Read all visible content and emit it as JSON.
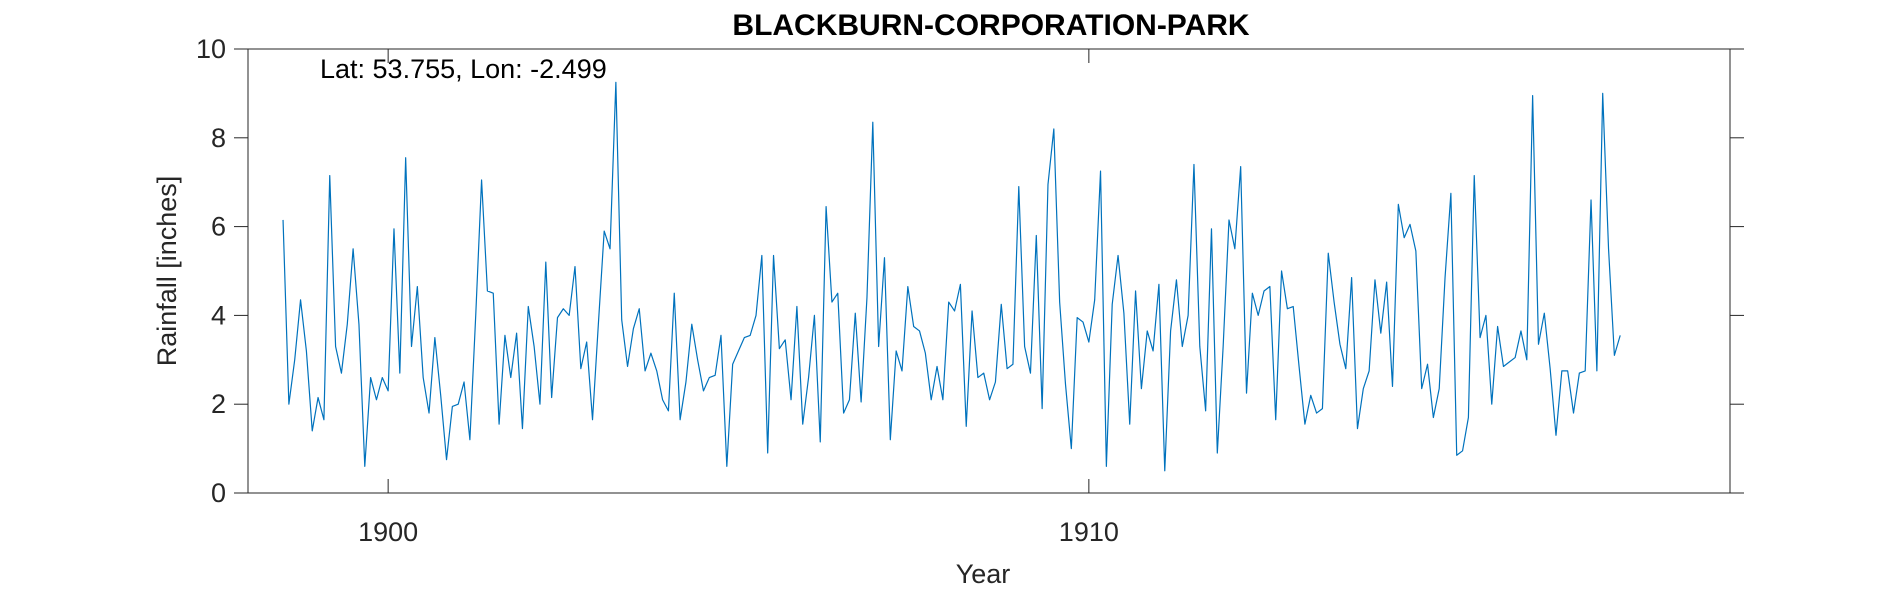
{
  "chart_data": {
    "type": "line",
    "title": "BLACKBURN-CORPORATION-PARK",
    "xlabel": "Year",
    "ylabel": "Rainfall [inches]",
    "annotation": "Lat: 53.755, Lon: -2.499",
    "xlim": [
      1898.0,
      1919.15
    ],
    "ylim": [
      0,
      10
    ],
    "xticks": [
      1900,
      1910
    ],
    "yticks": [
      0,
      2,
      4,
      6,
      8,
      10
    ],
    "grid": false,
    "line_color": "#0072BD",
    "series": [
      {
        "x_start": 1898.5,
        "x_step_months": 1,
        "values": [
          6.15,
          2.0,
          3.0,
          4.35,
          3.2,
          1.4,
          2.15,
          1.65,
          7.15,
          3.3,
          2.7,
          3.8,
          5.5,
          3.8,
          0.6,
          2.6,
          2.1,
          2.6,
          2.3,
          5.95,
          2.7,
          7.55,
          3.3,
          4.65,
          2.6,
          1.8,
          3.5,
          2.2,
          0.75,
          1.95,
          2.0,
          2.5,
          1.2,
          4.0,
          7.05,
          4.55,
          4.5,
          1.55,
          3.55,
          2.6,
          3.6,
          1.45,
          4.2,
          3.3,
          2.0,
          5.2,
          2.15,
          3.95,
          4.15,
          4.0,
          5.1,
          2.8,
          3.4,
          1.65,
          3.8,
          5.9,
          5.5,
          9.25,
          3.9,
          2.85,
          3.7,
          4.15,
          2.75,
          3.15,
          2.75,
          2.1,
          1.85,
          4.5,
          1.65,
          2.5,
          3.8,
          3.0,
          2.3,
          2.6,
          2.65,
          3.55,
          0.6,
          2.9,
          3.2,
          3.5,
          3.55,
          4.0,
          5.35,
          0.9,
          5.35,
          3.25,
          3.45,
          2.1,
          4.2,
          1.55,
          2.6,
          4.0,
          1.15,
          6.45,
          4.3,
          4.5,
          1.8,
          2.1,
          4.05,
          2.05,
          4.4,
          8.35,
          3.3,
          5.3,
          1.2,
          3.2,
          2.75,
          4.65,
          3.75,
          3.65,
          3.15,
          2.1,
          2.85,
          2.1,
          4.3,
          4.1,
          4.7,
          1.5,
          4.1,
          2.6,
          2.7,
          2.1,
          2.5,
          4.25,
          2.8,
          2.9,
          6.9,
          3.3,
          2.7,
          5.8,
          1.9,
          6.95,
          8.2,
          4.3,
          2.45,
          1.0,
          3.95,
          3.85,
          3.4,
          4.35,
          7.25,
          0.6,
          4.25,
          5.35,
          4.05,
          1.55,
          4.55,
          2.35,
          3.65,
          3.2,
          4.7,
          0.5,
          3.65,
          4.8,
          3.3,
          4.0,
          7.4,
          3.3,
          1.85,
          5.95,
          0.9,
          3.3,
          6.15,
          5.5,
          7.35,
          2.25,
          4.5,
          4.0,
          4.55,
          4.65,
          1.65,
          5.0,
          4.15,
          4.2,
          2.85,
          1.55,
          2.2,
          1.8,
          1.9,
          5.4,
          4.3,
          3.35,
          2.8,
          4.85,
          1.45,
          2.35,
          2.75,
          4.8,
          3.6,
          4.75,
          2.4,
          6.5,
          5.75,
          6.05,
          5.45,
          2.35,
          2.9,
          1.7,
          2.35,
          4.85,
          6.75,
          0.85,
          0.95,
          1.7,
          7.15,
          3.5,
          4.0,
          2.0,
          3.75,
          2.85,
          2.95,
          3.05,
          3.65,
          3.0,
          8.95,
          3.35,
          4.05,
          2.8,
          1.3,
          2.75,
          2.75,
          1.8,
          2.7,
          2.75,
          6.6,
          2.75,
          9.0,
          5.5,
          3.1,
          3.55
        ]
      }
    ]
  }
}
